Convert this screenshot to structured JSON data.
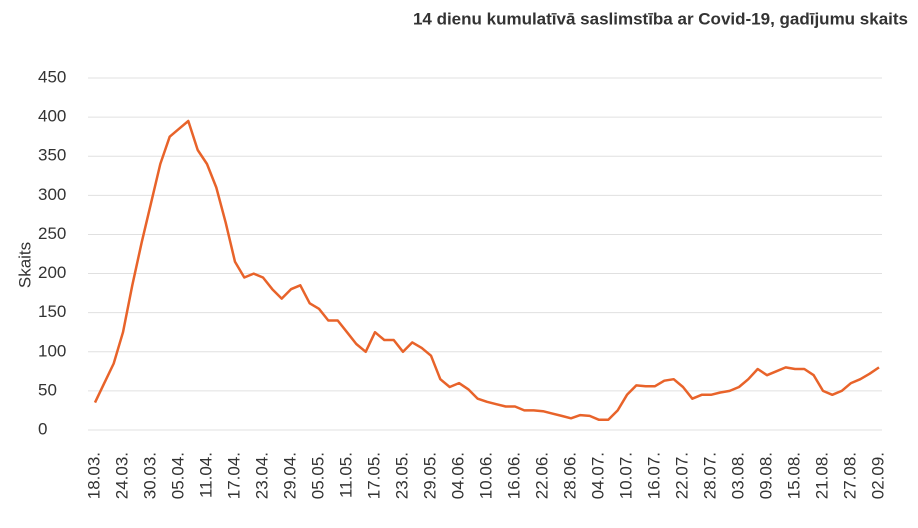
{
  "chart_data": {
    "type": "line",
    "title": "14 dienu kumulatīvā saslimstība ar Covid-19, gadījumu skaits",
    "y_label": "Skaits",
    "categories": [
      "18.03.",
      null,
      null,
      "24.03.",
      null,
      null,
      "30.03.",
      null,
      null,
      "05.04.",
      null,
      null,
      "11.04.",
      null,
      null,
      "17.04.",
      null,
      null,
      "23.04.",
      null,
      null,
      "29.04.",
      null,
      null,
      "05.05.",
      null,
      null,
      "11.05.",
      null,
      null,
      "17.05.",
      null,
      null,
      "23.05.",
      null,
      null,
      "29.05.",
      null,
      null,
      "04.06.",
      null,
      null,
      "10.06.",
      null,
      null,
      "16.06.",
      null,
      null,
      "22.06.",
      null,
      null,
      "28.06.",
      null,
      null,
      "04.07.",
      null,
      null,
      "10.07.",
      null,
      null,
      "16.07.",
      null,
      null,
      "22.07.",
      null,
      null,
      "28.07.",
      null,
      null,
      "03.08.",
      null,
      null,
      "09.08.",
      null,
      null,
      "15.08.",
      null,
      null,
      "21.08.",
      null,
      null,
      "27.08.",
      null,
      null,
      "02.09."
    ],
    "series": [
      {
        "name": "Skaits",
        "color": "#e8632a",
        "values": [
          35,
          60,
          85,
          125,
          185,
          240,
          290,
          340,
          375,
          385,
          395,
          358,
          340,
          310,
          265,
          215,
          195,
          200,
          195,
          180,
          168,
          180,
          185,
          162,
          155,
          140,
          140,
          125,
          110,
          100,
          125,
          115,
          115,
          100,
          112,
          105,
          95,
          65,
          55,
          60,
          52,
          40,
          36,
          33,
          30,
          30,
          25,
          25,
          24,
          21,
          18,
          15,
          19,
          18,
          13,
          13,
          25,
          45,
          57,
          56,
          56,
          63,
          65,
          55,
          40,
          45,
          45,
          48,
          50,
          55,
          65,
          78,
          70,
          75,
          80,
          78,
          78,
          70,
          50,
          45,
          50,
          60,
          65,
          72,
          80
        ]
      }
    ],
    "ylim": [
      0,
      450
    ],
    "yticks": [
      0,
      50,
      100,
      150,
      200,
      250,
      300,
      350,
      400,
      450
    ],
    "grid": true
  }
}
